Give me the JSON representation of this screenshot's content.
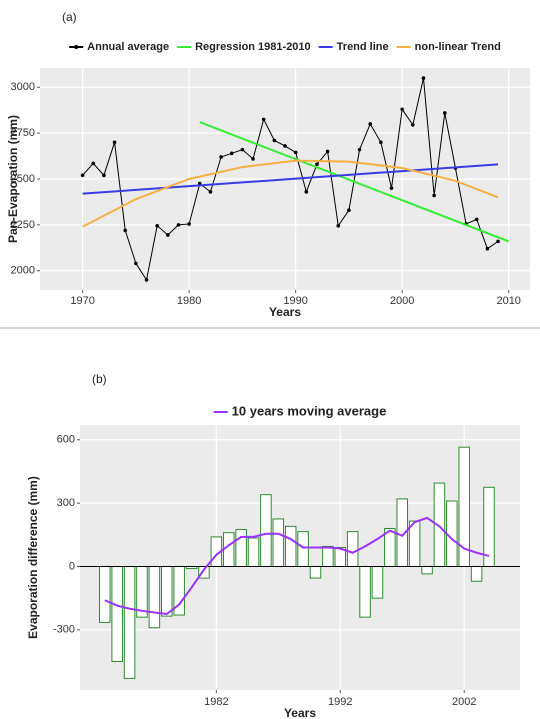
{
  "chart_data": [
    {
      "type": "line",
      "panel_label": "(a)",
      "x_label": "Years",
      "y_label": "Pan-Evaporation (mm)",
      "xlim": [
        1966,
        2012
      ],
      "ylim": [
        1895,
        3105
      ],
      "xticks": [
        1970,
        1980,
        1990,
        2000,
        2010
      ],
      "yticks": [
        2000,
        2250,
        2500,
        2750,
        3000
      ],
      "grid": true,
      "legend": "top",
      "series": [
        {
          "name": "Annual average",
          "color": "#000000",
          "markers": true,
          "x": [
            1970,
            1971,
            1972,
            1973,
            1974,
            1975,
            1976,
            1977,
            1978,
            1979,
            1980,
            1981,
            1982,
            1983,
            1984,
            1985,
            1986,
            1987,
            1988,
            1989,
            1990,
            1991,
            1992,
            1993,
            1994,
            1995,
            1996,
            1997,
            1998,
            1999,
            2000,
            2001,
            2002,
            2003,
            2004,
            2005,
            2006,
            2007,
            2008,
            2009
          ],
          "values": [
            2520,
            2585,
            2520,
            2700,
            2220,
            2040,
            1950,
            2245,
            2195,
            2250,
            2255,
            2475,
            2430,
            2620,
            2640,
            2660,
            2610,
            2825,
            2710,
            2680,
            2645,
            2430,
            2580,
            2650,
            2245,
            2330,
            2660,
            2800,
            2700,
            2450,
            2880,
            2795,
            3050,
            2410,
            2860,
            2560,
            2255,
            2280,
            2120,
            2160
          ]
        },
        {
          "name": "Regression 1981-2010",
          "color": "#33ee33",
          "x": [
            1981,
            2010
          ],
          "values": [
            2810,
            2160
          ]
        },
        {
          "name": "Trend line",
          "color": "#3a3ae8",
          "x": [
            1970,
            2009
          ],
          "values": [
            2420,
            2580
          ]
        },
        {
          "name": "non-linear Trend",
          "color": "#f5b041",
          "x": [
            1970,
            1975,
            1980,
            1985,
            1990,
            1995,
            2000,
            2005,
            2009
          ],
          "values": [
            2240,
            2390,
            2500,
            2565,
            2600,
            2595,
            2560,
            2490,
            2400
          ]
        }
      ]
    },
    {
      "type": "bar",
      "panel_label": "(b)",
      "x_label": "Years",
      "y_label": "Evaporation difference (mm)",
      "xlim": [
        1971,
        2006.5
      ],
      "ylim": [
        -585,
        670
      ],
      "xticks": [
        1982,
        1992,
        2002
      ],
      "yticks": [
        -300,
        0,
        300,
        600
      ],
      "grid": true,
      "legend": "top",
      "color": "#2e8b2e",
      "x": [
        1973,
        1974,
        1975,
        1976,
        1977,
        1978,
        1979,
        1980,
        1981,
        1982,
        1983,
        1984,
        1985,
        1986,
        1987,
        1988,
        1989,
        1990,
        1991,
        1992,
        1993,
        1994,
        1995,
        1996,
        1997,
        1998,
        1999,
        2000,
        2001,
        2002,
        2003,
        2004
      ],
      "values": [
        -265,
        -450,
        -530,
        -240,
        -290,
        -235,
        -230,
        -10,
        -55,
        140,
        160,
        175,
        135,
        340,
        225,
        190,
        165,
        -55,
        95,
        90,
        165,
        -240,
        -150,
        180,
        320,
        215,
        -35,
        395,
        310,
        565,
        -70,
        375
      ],
      "series": [
        {
          "name": "10 years moving average",
          "color": "#9b30ff",
          "x": [
            1973,
            1974,
            1975,
            1976,
            1977,
            1978,
            1979,
            1980,
            1981,
            1982,
            1983,
            1984,
            1985,
            1986,
            1987,
            1988,
            1989,
            1990,
            1991,
            1992,
            1993,
            1994,
            1995,
            1996,
            1997,
            1998,
            1999,
            2000,
            2001,
            2002,
            2003,
            2004
          ],
          "values": [
            -160,
            -185,
            -200,
            -210,
            -218,
            -225,
            -180,
            -100,
            -15,
            55,
            100,
            140,
            140,
            155,
            155,
            130,
            90,
            90,
            90,
            85,
            65,
            95,
            130,
            170,
            145,
            210,
            230,
            190,
            130,
            85,
            65,
            50
          ]
        }
      ]
    }
  ]
}
